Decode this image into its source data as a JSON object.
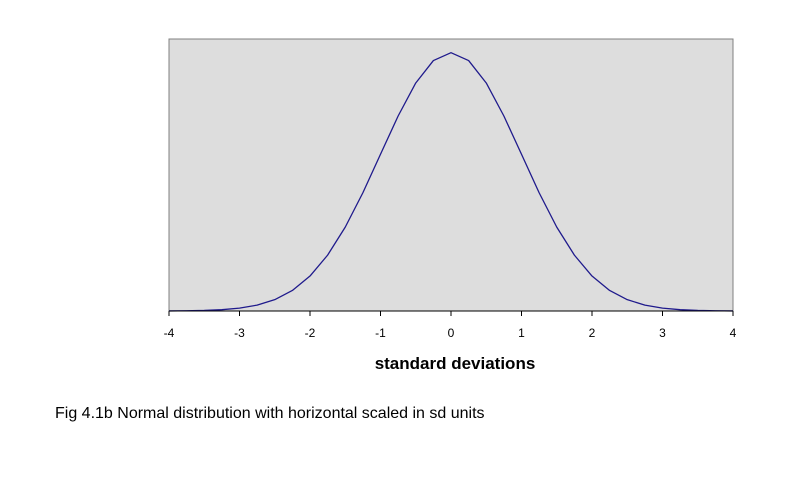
{
  "chart_data": {
    "type": "line",
    "title": "",
    "xlabel": "standard deviations",
    "ylabel": "",
    "xlim": [
      -4,
      4
    ],
    "ylim": [
      0,
      0.42
    ],
    "x_ticks": [
      "-4",
      "-3",
      "-2",
      "-1",
      "0",
      "1",
      "2",
      "3",
      "4"
    ],
    "grid": false,
    "legend": "none",
    "series": [
      {
        "x": [
          -4,
          -3.75,
          -3.5,
          -3.25,
          -3,
          -2.75,
          -2.5,
          -2.25,
          -2,
          -1.75,
          -1.5,
          -1.25,
          -1,
          -0.75,
          -0.5,
          -0.25,
          0,
          0.25,
          0.5,
          0.75,
          1,
          1.25,
          1.5,
          1.75,
          2,
          2.25,
          2.5,
          2.75,
          3,
          3.25,
          3.5,
          3.75,
          4
        ],
        "values": [
          0.0001,
          0.0004,
          0.0009,
          0.002,
          0.0044,
          0.0091,
          0.0175,
          0.0317,
          0.054,
          0.0863,
          0.1295,
          0.1826,
          0.242,
          0.3011,
          0.3521,
          0.3867,
          0.3989,
          0.3867,
          0.3521,
          0.3011,
          0.242,
          0.1826,
          0.1295,
          0.0863,
          0.054,
          0.0317,
          0.0175,
          0.0091,
          0.0044,
          0.002,
          0.0009,
          0.0004,
          0.0001
        ]
      }
    ],
    "colors": {
      "plot_background": "#dddddd",
      "line": "#1f1a8c",
      "frame": "#808080"
    }
  },
  "caption": "Fig 4.1b Normal distribution with horizontal scaled in sd units"
}
